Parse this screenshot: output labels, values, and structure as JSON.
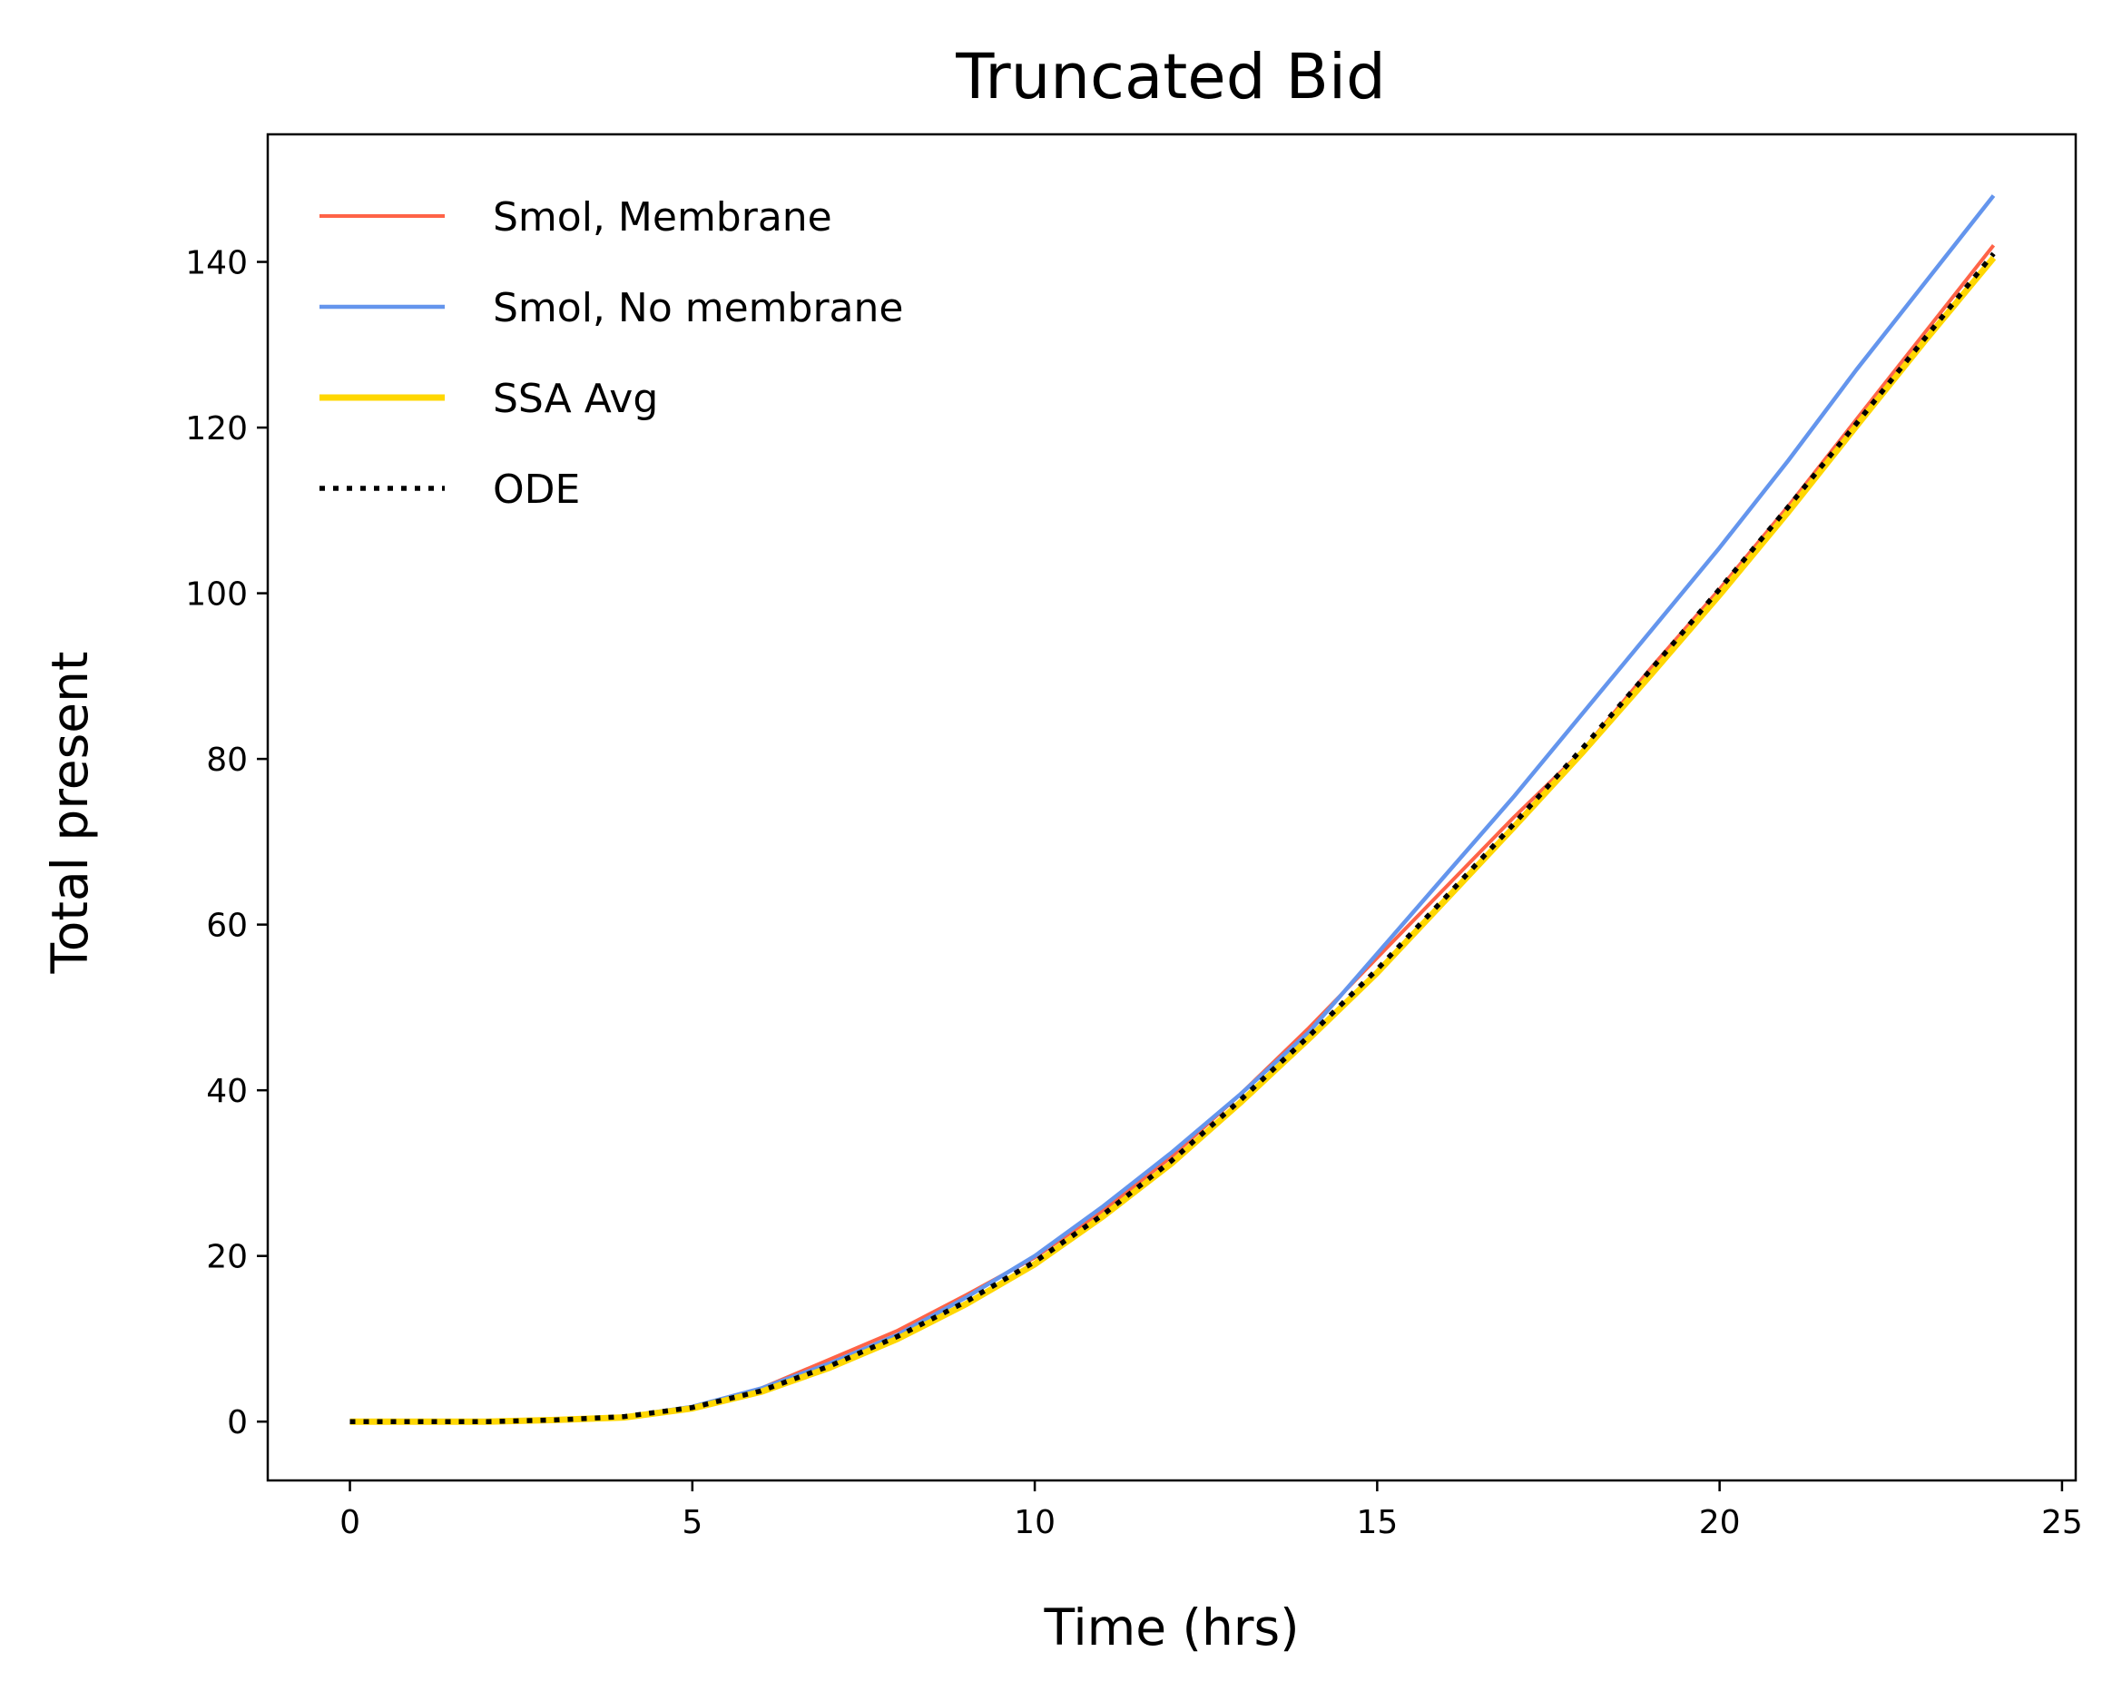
{
  "chart_data": {
    "type": "line",
    "title": "Truncated Bid",
    "xlabel": "Time (hrs)",
    "ylabel": "Total present",
    "xlim": [
      -1.2,
      25.2
    ],
    "ylim": [
      -7.1,
      155.4
    ],
    "xticks": [
      0,
      5,
      10,
      15,
      20,
      25
    ],
    "yticks": [
      0,
      20,
      40,
      60,
      80,
      100,
      120,
      140
    ],
    "grid": false,
    "legend_position": "top-left",
    "x": [
      0,
      1,
      2,
      3,
      4,
      5,
      6,
      7,
      8,
      9,
      10,
      11,
      12,
      13,
      14,
      15,
      16,
      17,
      18,
      19,
      20,
      21,
      22,
      23,
      24
    ],
    "series": [
      {
        "name": "Smol, Membrane",
        "color": "#ff6347",
        "style": "solid",
        "values": [
          0,
          0,
          0,
          0.3,
          0.6,
          1.8,
          4,
          7.5,
          11,
          15.3,
          19.8,
          25.5,
          32,
          39.5,
          47.5,
          56,
          64.5,
          73,
          81,
          91,
          100.5,
          110.5,
          121,
          131.5,
          142
        ]
      },
      {
        "name": "Smol, No membrane",
        "color": "#6495ed",
        "style": "solid",
        "values": [
          0,
          0,
          0,
          0.3,
          0.6,
          1.8,
          4,
          7,
          10.5,
          15,
          20,
          26,
          32.5,
          39.5,
          47,
          56.5,
          66,
          75.5,
          85.5,
          95.5,
          105.5,
          116,
          127,
          137.5,
          148
        ]
      },
      {
        "name": "SSA Avg",
        "color": "#ffd700",
        "style": "solid",
        "values": [
          0,
          0,
          0,
          0.2,
          0.5,
          1.6,
          3.6,
          6.5,
          10,
          14.2,
          19,
          24.8,
          31.2,
          38.5,
          46.2,
          54.2,
          63,
          71.8,
          80.8,
          90.2,
          99.8,
          109.8,
          120.2,
          130.5,
          140.5
        ]
      },
      {
        "name": "ODE",
        "color": "#000000",
        "style": "dotted",
        "values": [
          0,
          0,
          0,
          0.2,
          0.6,
          1.7,
          3.7,
          6.7,
          10.3,
          14.5,
          19.3,
          25,
          31.5,
          38.8,
          46.5,
          54.6,
          63.3,
          72.2,
          81.3,
          90.8,
          100.5,
          110.4,
          120.5,
          130.8,
          141
        ]
      }
    ]
  }
}
